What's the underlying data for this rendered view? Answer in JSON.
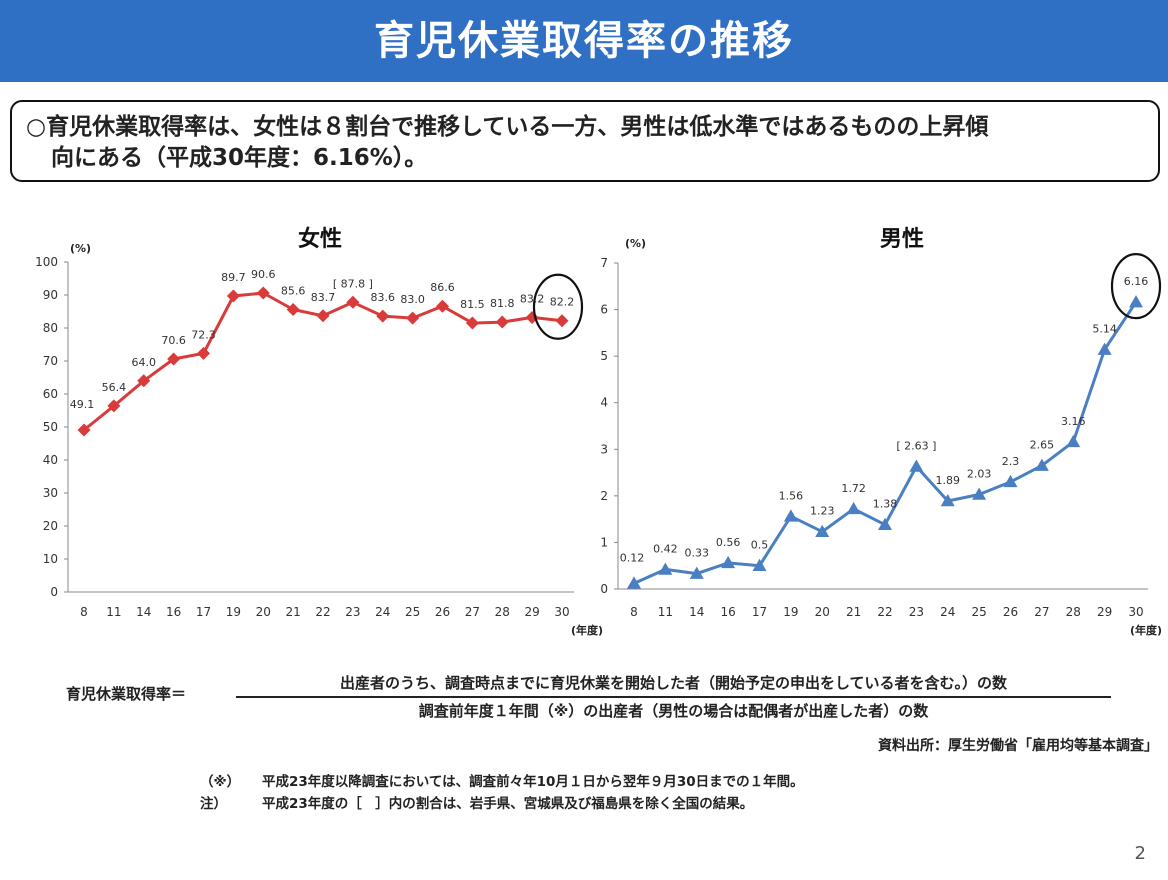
{
  "header": {
    "title": "育児休業取得率の推移"
  },
  "summary": {
    "line1": "○育児休業取得率は、女性は８割台で推移している一方、男性は低水準ではあるものの上昇傾",
    "line2": "向にある（平成30年度：6.16%）。"
  },
  "chart_data": [
    {
      "type": "line",
      "title": "女性",
      "ylabel": "(%)",
      "xunit": "(年度)",
      "ylim": [
        0,
        100
      ],
      "yticks": [
        0,
        10,
        20,
        30,
        40,
        50,
        60,
        70,
        80,
        90,
        100
      ],
      "categories": [
        "8",
        "11",
        "14",
        "16",
        "17",
        "19",
        "20",
        "21",
        "22",
        "23",
        "24",
        "25",
        "26",
        "27",
        "28",
        "29",
        "30"
      ],
      "values": [
        49.1,
        56.4,
        64.0,
        70.6,
        72.3,
        89.7,
        90.6,
        85.6,
        83.7,
        87.8,
        83.6,
        83.0,
        86.6,
        81.5,
        81.8,
        83.2,
        82.2
      ],
      "labels": [
        "49.1",
        "56.4",
        "64.0",
        "70.6",
        "72.3",
        "89.7",
        "90.6",
        "85.6",
        "83.7",
        "[ 87.8 ]",
        "83.6",
        "83.0",
        "86.6",
        "81.5",
        "81.8",
        "83.2",
        "82.2"
      ],
      "marker": "diamond",
      "color": "#d93a3a",
      "grid": false,
      "highlight_last": true
    },
    {
      "type": "line",
      "title": "男性",
      "ylabel": "(%)",
      "xunit": "(年度)",
      "ylim": [
        0,
        7
      ],
      "yticks": [
        0,
        1,
        2,
        3,
        4,
        5,
        6,
        7
      ],
      "categories": [
        "8",
        "11",
        "14",
        "16",
        "17",
        "19",
        "20",
        "21",
        "22",
        "23",
        "24",
        "25",
        "26",
        "27",
        "28",
        "29",
        "30"
      ],
      "values": [
        0.12,
        0.42,
        0.33,
        0.56,
        0.5,
        1.56,
        1.23,
        1.72,
        1.38,
        2.63,
        1.89,
        2.03,
        2.3,
        2.65,
        3.16,
        5.14,
        6.16
      ],
      "labels": [
        "0.12",
        "0.42",
        "0.33",
        "0.56",
        "0.5",
        "1.56",
        "1.23",
        "1.72",
        "1.38",
        "[ 2.63 ]",
        "1.89",
        "2.03",
        "2.3",
        "2.65",
        "3.16",
        "5.14",
        "6.16"
      ],
      "marker": "triangle",
      "color": "#4a7fc1",
      "grid": false,
      "highlight_last": true
    }
  ],
  "formula": {
    "label": "育児休業取得率＝",
    "numerator": "出産者のうち、調査時点までに育児休業を開始した者（開始予定の申出をしている者を含む。）の数",
    "denominator": "調査前年度１年間（※）の出産者（男性の場合は配偶者が出産した者）の数"
  },
  "source": "資料出所：厚生労働省「雇用均等基本調査」",
  "notes": [
    {
      "mark": "（※）",
      "text": "平成23年度以降調査においては、調査前々年10月１日から翌年９月30日までの１年間。"
    },
    {
      "mark": "注）",
      "text": "平成23年度の［　］内の割合は、岩手県、宮城県及び福島県を除く全国の結果。"
    }
  ],
  "page_number": "2"
}
